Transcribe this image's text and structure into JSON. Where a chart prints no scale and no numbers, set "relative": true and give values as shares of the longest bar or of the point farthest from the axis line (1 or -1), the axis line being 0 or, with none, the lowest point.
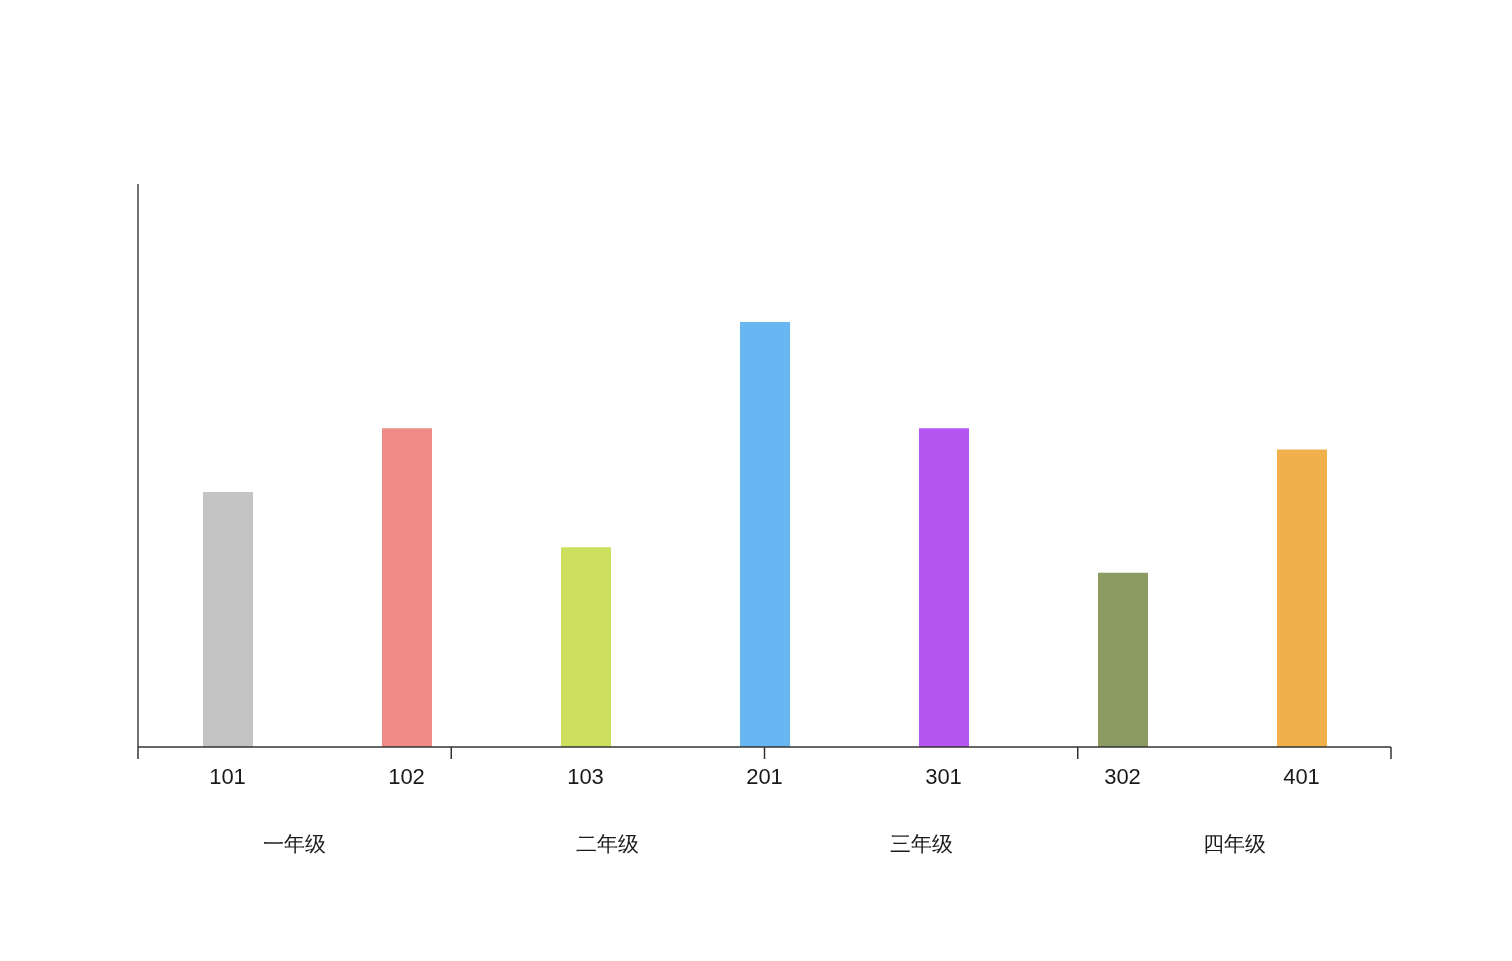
{
  "chart_data": {
    "type": "bar",
    "relative": true,
    "categories": [
      "101",
      "102",
      "103",
      "201",
      "301",
      "302",
      "401"
    ],
    "values": [
      0.6,
      0.75,
      0.47,
      1,
      0.75,
      0.41,
      0.7
    ],
    "colors": [
      "#c4c4c4",
      "#ee8b87",
      "#cce05d",
      "#69b7f2",
      "#b556f2",
      "#8c9b62",
      "#f0b04c"
    ],
    "annotations": [
      "一年级",
      "二年级",
      "三年级",
      "四年级"
    ]
  }
}
